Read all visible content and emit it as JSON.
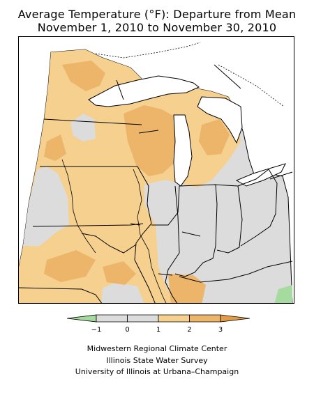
{
  "title": {
    "line1": "Average Temperature (°F): Departure from Mean",
    "line2": "November 1, 2010 to November 30, 2010"
  },
  "legend": {
    "tick_labels": [
      "−1",
      "0",
      "1",
      "2",
      "3"
    ],
    "bins": [
      {
        "range": "< -1",
        "color": "#a6dba0"
      },
      {
        "range": "-1 to 0",
        "color": "#dcdcdc"
      },
      {
        "range": "0 to 1",
        "color": "#dcdcdc"
      },
      {
        "range": "1 to 2",
        "color": "#f5d08e"
      },
      {
        "range": "2 to 3",
        "color": "#ecb56a"
      },
      {
        "range": "> 3",
        "color": "#e49b45"
      }
    ]
  },
  "colors": {
    "neutral": "#dcdcdc",
    "warm_1_2": "#f5d08e",
    "warm_2_3": "#ecb56a",
    "warm_3_plus": "#e49b45",
    "cool_below_minus1": "#a6dba0",
    "lake": "#ffffff",
    "outline": "#000000"
  },
  "credits": {
    "line1": "Midwestern Regional Climate Center",
    "line2": "Illinois State Water Survey",
    "line3": "University of Illinois at Urbana–Champaign"
  }
}
